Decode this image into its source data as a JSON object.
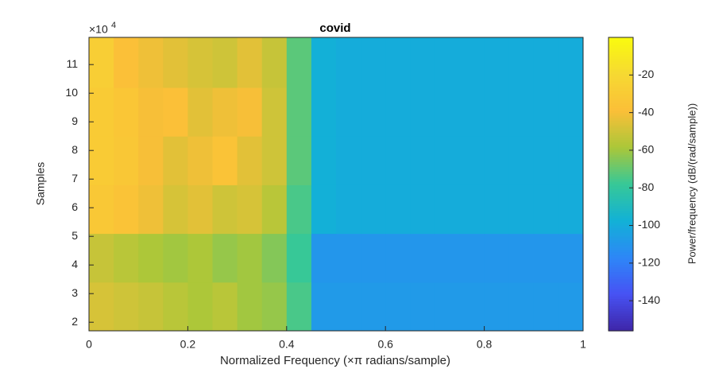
{
  "chart_data": {
    "type": "heatmap",
    "title": "covid",
    "x_label": "Normalized Frequency (×π radians/sample)",
    "y_label": "Samples",
    "y_exponent": {
      "base": "×10",
      "power": "4"
    },
    "colorbar_label": "Power/frequency (dB/(rad/sample))",
    "xlim": [
      0,
      1
    ],
    "xticks": [
      0,
      0.2,
      0.4,
      0.6,
      0.8,
      1
    ],
    "ylim": [
      1.7,
      11.95
    ],
    "yticks": [
      2,
      3,
      4,
      5,
      6,
      7,
      8,
      9,
      10,
      11
    ],
    "clim": [
      -156,
      0
    ],
    "cticks": [
      -140,
      -120,
      -100,
      -80,
      -60,
      -40,
      -20
    ],
    "colormap": [
      "#3e26a8",
      "#4752f4",
      "#2d87f7",
      "#12b1d6",
      "#37c897",
      "#abc739",
      "#fbbf38",
      "#f6d932",
      "#f9fb0e"
    ],
    "x_edges": [
      0,
      0.05,
      0.1,
      0.15,
      0.2,
      0.25,
      0.3,
      0.35,
      0.4,
      0.45,
      0.5,
      0.55,
      0.6,
      0.65,
      0.7,
      0.75,
      0.8,
      0.85,
      0.9,
      0.95,
      1
    ],
    "y_edges": [
      1.7,
      3.4,
      5.1,
      6.8,
      8.5,
      10.2,
      11.95
    ],
    "values": [
      [
        -48,
        -50,
        -52,
        -55,
        -58,
        -55,
        -60,
        -62,
        -75,
        -108,
        -108,
        -108,
        -108,
        -108,
        -108,
        -108,
        -108,
        -108,
        -108,
        -108
      ],
      [
        -52,
        -55,
        -58,
        -60,
        -58,
        -62,
        -60,
        -65,
        -78,
        -110,
        -110,
        -110,
        -110,
        -110,
        -110,
        -110,
        -110,
        -110,
        -110,
        -110
      ],
      [
        -32,
        -36,
        -42,
        -48,
        -45,
        -50,
        -48,
        -55,
        -75,
        -98,
        -100,
        -100,
        -100,
        -100,
        -100,
        -100,
        -100,
        -100,
        -100,
        -100
      ],
      [
        -30,
        -33,
        -40,
        -45,
        -42,
        -36,
        -45,
        -50,
        -72,
        -98,
        -100,
        -100,
        -100,
        -100,
        -100,
        -100,
        -100,
        -100,
        -100,
        -100
      ],
      [
        -30,
        -34,
        -40,
        -38,
        -45,
        -42,
        -40,
        -50,
        -72,
        -98,
        -100,
        -100,
        -100,
        -100,
        -100,
        -100,
        -100,
        -100,
        -100,
        -100
      ],
      [
        -28,
        -38,
        -42,
        -45,
        -48,
        -50,
        -45,
        -52,
        -72,
        -98,
        -100,
        -100,
        -100,
        -100,
        -100,
        -100,
        -100,
        -100,
        -100,
        -100
      ]
    ]
  }
}
